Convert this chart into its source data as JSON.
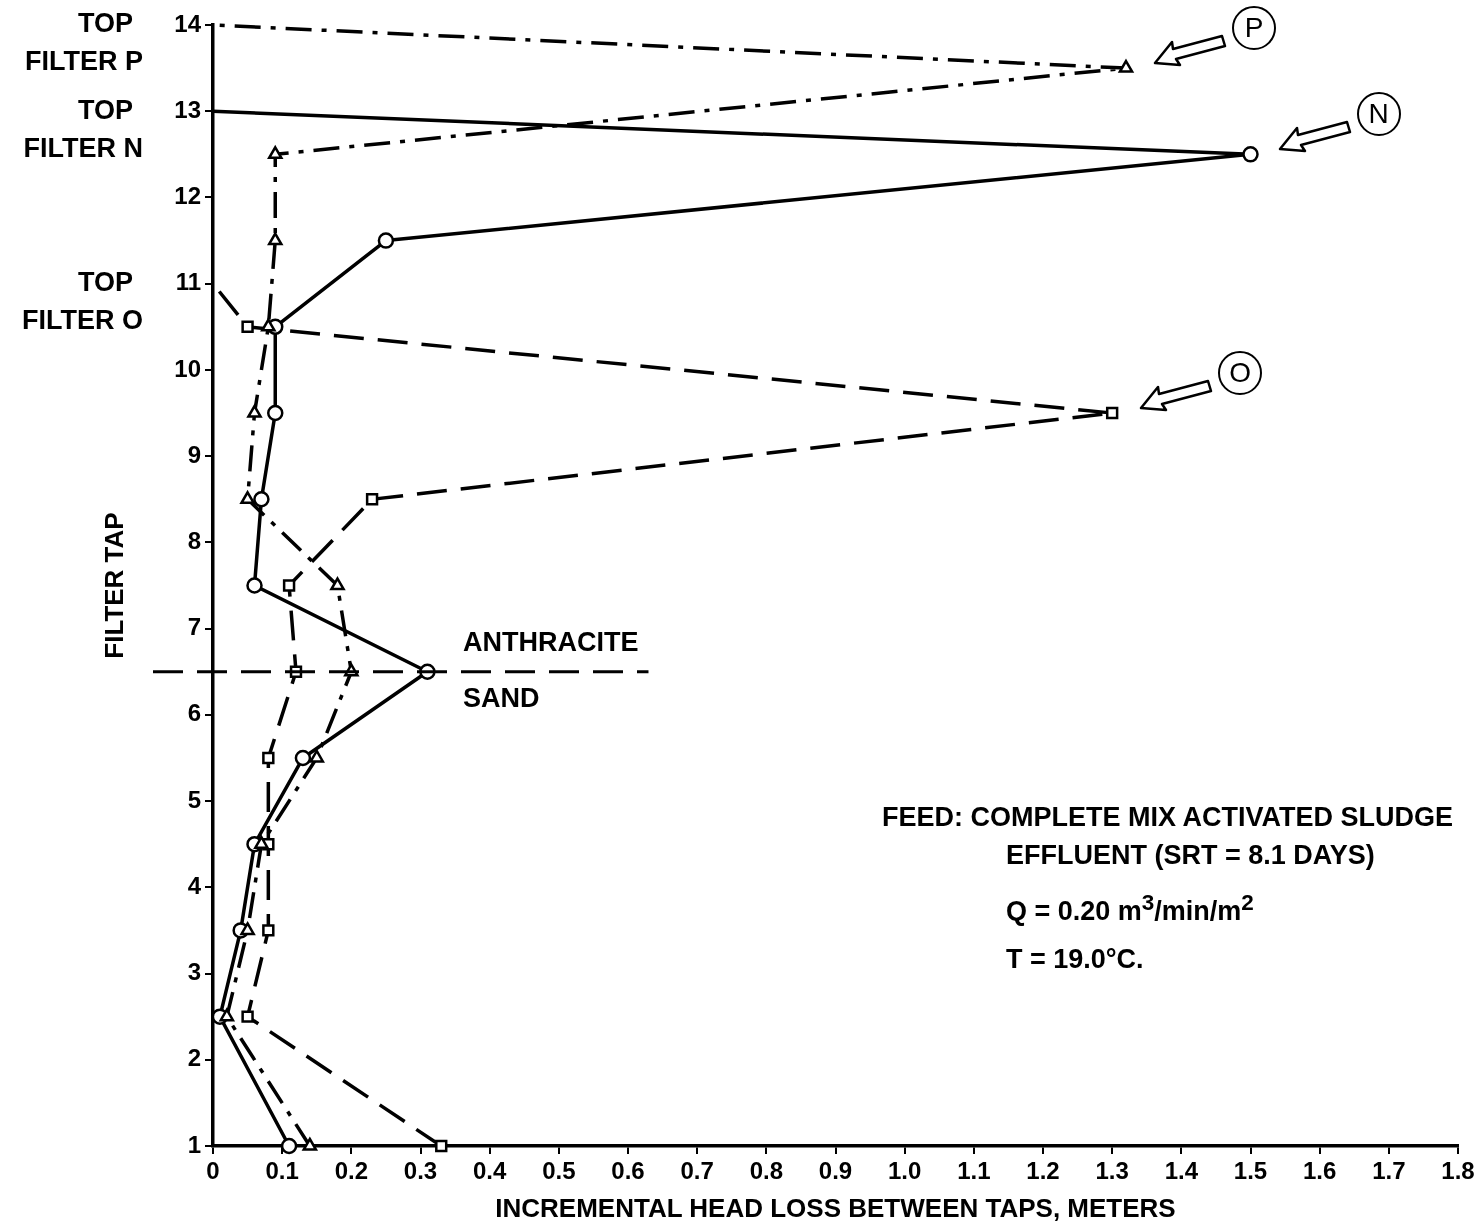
{
  "chart_data": {
    "type": "line",
    "xlabel": "INCREMENTAL HEAD LOSS BETWEEN TAPS, METERS",
    "ylabel": "FILTER TAP",
    "xlim": [
      0,
      1.8
    ],
    "xticks": [
      0,
      0.1,
      0.2,
      0.3,
      0.4,
      0.5,
      0.6,
      0.7,
      0.8,
      0.9,
      {
        "value": 1,
        "label": "1.0"
      },
      1.1,
      1.2,
      1.3,
      1.4,
      1.5,
      1.6,
      1.7,
      1.8
    ],
    "ylim": [
      1,
      14
    ],
    "yticks": [
      1,
      2,
      3,
      4,
      5,
      6,
      7,
      8,
      9,
      10,
      11,
      12,
      13,
      14
    ],
    "series": [
      {
        "name": "P",
        "color": "#000000",
        "marker": "triangle",
        "line_style": "dashdot",
        "x": [
          0.14,
          0.02,
          0.05,
          0.07,
          0.15,
          0.2,
          0.18,
          0.05,
          0.06,
          0.08,
          0.09,
          0.09,
          1.32,
          0
        ],
        "values": [
          1,
          2.5,
          3.5,
          4.5,
          5.5,
          6.5,
          7.5,
          8.5,
          9.5,
          10.5,
          11.5,
          12.5,
          13.5,
          14
        ]
      },
      {
        "name": "N",
        "color": "#000000",
        "marker": "circle",
        "line_style": "solid",
        "x": [
          0.11,
          0.01,
          0.04,
          0.06,
          0.13,
          0.31,
          0.06,
          0.07,
          0.09,
          0.09,
          0.25,
          1.5,
          0
        ],
        "values": [
          1,
          2.5,
          3.5,
          4.5,
          5.5,
          6.5,
          7.5,
          8.5,
          9.5,
          10.5,
          11.5,
          12.5,
          13
        ]
      },
      {
        "name": "O",
        "color": "#000000",
        "marker": "square",
        "line_style": "dashed",
        "x": [
          0.33,
          0.05,
          0.08,
          0.08,
          0.08,
          0.12,
          0.11,
          0.23,
          1.3,
          0.05,
          0
        ],
        "values": [
          1,
          2.5,
          3.5,
          4.5,
          5.5,
          6.5,
          7.5,
          8.5,
          9.5,
          10.5,
          11
        ]
      }
    ],
    "ref_lines": [
      {
        "axis": "y",
        "value": 6.5,
        "label": "ANTHRACITE\nSAND",
        "color": "#000000",
        "line_style": "dashed"
      }
    ],
    "annotations": [
      "TOP\nFILTER P",
      "TOP\nFILTER N",
      "TOP\nFILTER O",
      "FEED: COMPLETE MIX ACTIVATED SLUDGE",
      "EFFLUENT (SRT = 8.1 DAYS)",
      "Q = 0.20 m$^{3}$/min/m$^{2}$",
      "T = 19.0°C."
    ]
  }
}
